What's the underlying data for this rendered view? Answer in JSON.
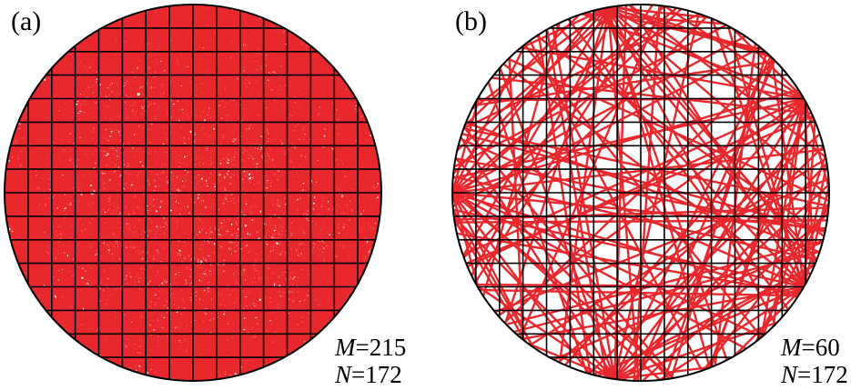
{
  "colors": {
    "beam": "#e8282d",
    "grid": "#000000",
    "boundary": "#000000",
    "background": "#ffffff"
  },
  "panels": [
    {
      "label": "(a)",
      "stats": [
        {
          "symbol": "M",
          "eq": "=215"
        },
        {
          "symbol": "N",
          "eq": "=172"
        }
      ],
      "grid_cells_across": 16,
      "sources": 215,
      "detectors": 172,
      "style": "dense fan-beam projections over whole disk"
    },
    {
      "label": "(b)",
      "stats": [
        {
          "symbol": "M",
          "eq": "=60"
        },
        {
          "symbol": "N",
          "eq": "=172"
        }
      ],
      "grid_cells_across": 16,
      "sources": 60,
      "detectors": 172,
      "style": "sparse fan-beam projections"
    }
  ]
}
